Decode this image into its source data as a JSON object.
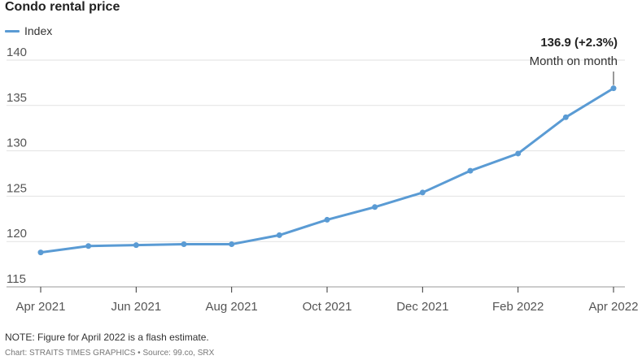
{
  "chart_data": {
    "type": "line",
    "title": "Condo rental price",
    "legend": "Index",
    "series_color": "#5a9bd4",
    "x": [
      "Apr 2021",
      "May 2021",
      "Jun 2021",
      "Jul 2021",
      "Aug 2021",
      "Sep 2021",
      "Oct 2021",
      "Nov 2021",
      "Dec 2021",
      "Jan 2022",
      "Feb 2022",
      "Mar 2022",
      "Apr 2022"
    ],
    "x_tick_labels": [
      "Apr 2021",
      "Jun 2021",
      "Aug 2021",
      "Oct 2021",
      "Dec 2021",
      "Feb 2022",
      "Apr 2022"
    ],
    "series": [
      {
        "name": "Index",
        "values": [
          118.8,
          119.5,
          119.6,
          119.7,
          119.7,
          120.7,
          122.4,
          123.8,
          125.4,
          127.8,
          129.7,
          133.7,
          136.9
        ]
      }
    ],
    "ylim": [
      115,
      140
    ],
    "y_ticks": [
      115,
      120,
      125,
      130,
      135,
      140
    ],
    "grid": "horizontal",
    "annotation": {
      "value": "136.9 (+2.3%)",
      "text": "Month on month"
    }
  },
  "footer": {
    "note": "NOTE: Figure for April 2022 is a flash estimate.",
    "credit": "Chart: STRAITS TIMES GRAPHICS • Source: 99.co, SRX"
  }
}
